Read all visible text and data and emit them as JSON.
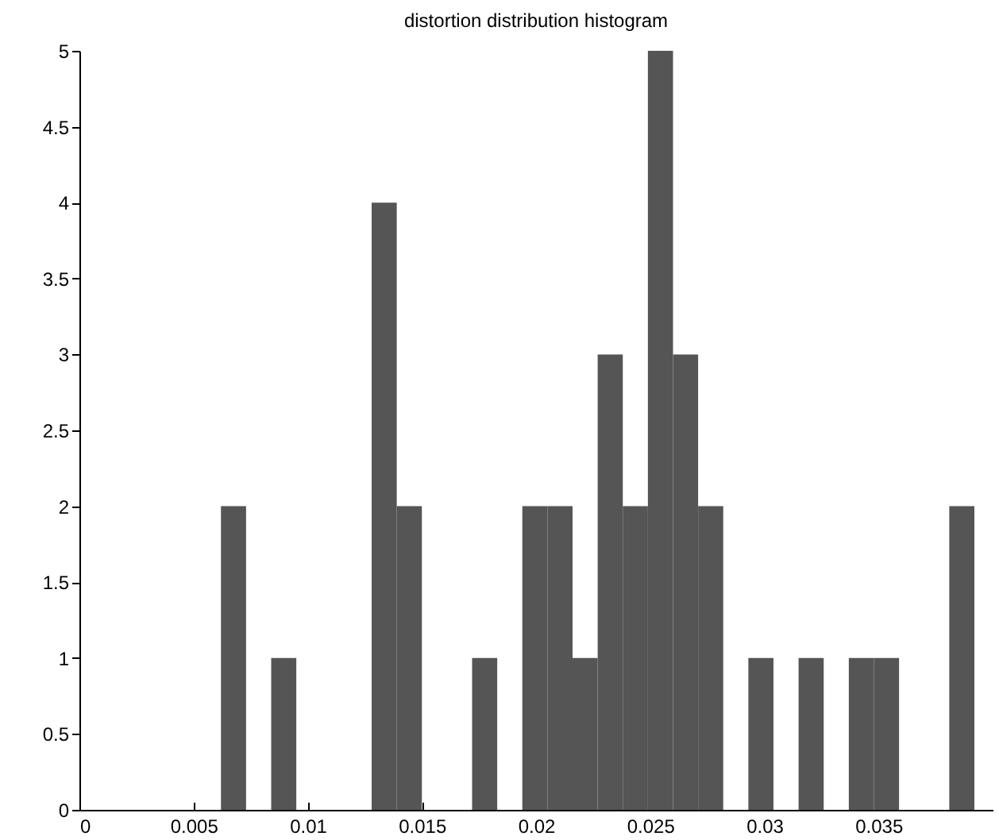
{
  "chart_data": {
    "type": "histogram",
    "title": "distortion distribution histogram",
    "bins": [
      0.0062,
      0.0073,
      0.0084,
      0.0095,
      0.0106,
      0.0117,
      0.0128,
      0.0139,
      0.015,
      0.0161,
      0.0172,
      0.0183,
      0.0194,
      0.0205,
      0.0216,
      0.0227,
      0.0238,
      0.0249,
      0.026,
      0.0271,
      0.0282,
      0.0293,
      0.0304,
      0.0315,
      0.0326,
      0.0337,
      0.0348,
      0.0359,
      0.037,
      0.0381,
      0.0392
    ],
    "values": [
      2,
      0,
      1,
      0,
      0,
      0,
      4,
      2,
      0,
      0,
      1,
      0,
      2,
      2,
      1,
      3,
      2,
      5,
      3,
      2,
      0,
      1,
      0,
      1,
      0,
      1,
      1,
      0,
      0,
      2
    ],
    "color": "#555555",
    "xlim": [
      0,
      0.04
    ],
    "xticks": [
      0,
      0.005,
      0.01,
      0.015,
      0.02,
      0.025,
      0.03,
      0.035
    ],
    "ylim": [
      0,
      5
    ],
    "yticks": [
      0,
      0.5,
      1,
      1.5,
      2,
      2.5,
      3,
      3.5,
      4,
      4.5,
      5
    ]
  }
}
